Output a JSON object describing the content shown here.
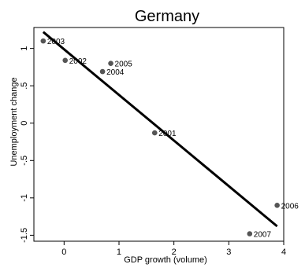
{
  "chart_data": {
    "type": "scatter",
    "title": "Germany",
    "xlabel": "GDP growth (volume)",
    "ylabel": "Unemployment change",
    "xlim": [
      -0.55,
      4.0
    ],
    "ylim": [
      -1.58,
      1.28
    ],
    "xticks": [
      0,
      1,
      2,
      3,
      4
    ],
    "yticks": [
      1,
      0.5,
      0,
      -0.5,
      -1,
      -1.5
    ],
    "xtick_labels": [
      "0",
      "1",
      "2",
      "3",
      "4"
    ],
    "ytick_labels": [
      "1",
      ".5",
      "0",
      "-.5",
      "-1",
      "-1.5"
    ],
    "points": [
      {
        "label": "2003",
        "x": -0.38,
        "y": 1.1
      },
      {
        "label": "2002",
        "x": 0.02,
        "y": 0.84
      },
      {
        "label": "2005",
        "x": 0.85,
        "y": 0.8
      },
      {
        "label": "2004",
        "x": 0.7,
        "y": 0.69
      },
      {
        "label": "2001",
        "x": 1.65,
        "y": -0.13
      },
      {
        "label": "2006",
        "x": 3.88,
        "y": -1.1
      },
      {
        "label": "2007",
        "x": 3.38,
        "y": -1.48
      }
    ],
    "fit_line": {
      "x": [
        -0.38,
        3.88
      ],
      "y": [
        1.22,
        -1.38
      ]
    },
    "grid": false,
    "colors": {
      "points": "#555555",
      "line": "#000000",
      "axes": "#000000"
    }
  }
}
